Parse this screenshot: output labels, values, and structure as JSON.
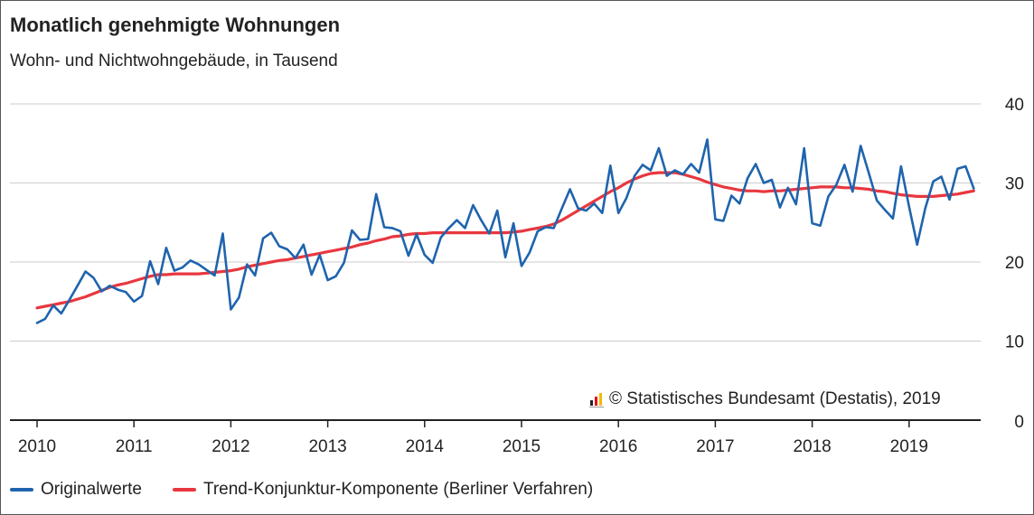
{
  "title": "Monatlich genehmigte Wohnungen",
  "subtitle": "Wohn- und Nichtwohngebäude, in Tausend",
  "copyright": "© Statistisches Bundesamt (Destatis), 2019",
  "colors": {
    "original": "#1f64ad",
    "trend": "#e8373f",
    "grid": "#cccccc",
    "axis": "#222222"
  },
  "chart_data": {
    "type": "line",
    "title": "Monatlich genehmigte Wohnungen",
    "subtitle": "Wohn- und Nichtwohngebäude, in Tausend",
    "xlabel": "",
    "ylabel": "",
    "x_start": "2010-01",
    "x_ticks": [
      "2010",
      "2011",
      "2012",
      "2013",
      "2014",
      "2015",
      "2016",
      "2017",
      "2018",
      "2019"
    ],
    "y_ticks": [
      0,
      10,
      20,
      30,
      40
    ],
    "ylim": [
      0,
      40
    ],
    "y_axis_side": "right",
    "grid": true,
    "legend_position": "bottom-left",
    "series": [
      {
        "name": "Originalwerte",
        "color": "#1f64ad",
        "values": [
          12.3,
          12.8,
          14.5,
          13.5,
          15.2,
          17.0,
          18.8,
          18.0,
          16.3,
          17.0,
          16.5,
          16.2,
          15.0,
          15.7,
          20.1,
          17.2,
          21.8,
          18.9,
          19.3,
          20.2,
          19.7,
          19.0,
          18.3,
          23.6,
          14.0,
          15.5,
          19.7,
          18.3,
          23.0,
          23.7,
          22.0,
          21.6,
          20.5,
          22.2,
          18.4,
          20.9,
          17.7,
          18.2,
          19.9,
          24.0,
          22.8,
          22.9,
          28.6,
          24.4,
          24.3,
          23.9,
          20.8,
          23.5,
          20.9,
          19.9,
          23.1,
          24.3,
          25.3,
          24.3,
          27.2,
          25.3,
          23.6,
          26.5,
          20.6,
          24.9,
          19.5,
          21.2,
          23.9,
          24.4,
          24.3,
          26.8,
          29.2,
          26.8,
          26.5,
          27.4,
          26.2,
          32.2,
          26.2,
          28.1,
          30.9,
          32.3,
          31.6,
          34.4,
          30.9,
          31.6,
          31.1,
          32.4,
          31.3,
          35.5,
          25.4,
          25.2,
          28.4,
          27.4,
          30.6,
          32.4,
          30.0,
          30.4,
          26.9,
          29.4,
          27.3,
          34.4,
          24.9,
          24.6,
          28.3,
          29.8,
          32.3,
          28.9,
          34.7,
          31.3,
          27.8,
          26.6,
          25.5,
          32.1,
          27.0,
          22.2,
          26.8,
          30.2,
          30.8,
          27.9,
          31.8,
          32.1,
          29.3
        ]
      },
      {
        "name": "Trend-Konjunktur-Komponente (Berliner Verfahren)",
        "color": "#e8373f",
        "values": [
          14.2,
          14.4,
          14.6,
          14.8,
          15.0,
          15.3,
          15.6,
          16.0,
          16.4,
          16.8,
          17.1,
          17.3,
          17.6,
          17.9,
          18.2,
          18.4,
          18.4,
          18.5,
          18.5,
          18.5,
          18.5,
          18.6,
          18.7,
          18.8,
          18.9,
          19.1,
          19.4,
          19.6,
          19.8,
          20.0,
          20.2,
          20.3,
          20.5,
          20.7,
          20.9,
          21.1,
          21.3,
          21.5,
          21.7,
          21.9,
          22.2,
          22.4,
          22.7,
          22.9,
          23.2,
          23.3,
          23.5,
          23.6,
          23.6,
          23.7,
          23.7,
          23.7,
          23.7,
          23.7,
          23.7,
          23.7,
          23.7,
          23.7,
          23.7,
          23.8,
          23.9,
          24.1,
          24.3,
          24.5,
          24.8,
          25.3,
          25.9,
          26.5,
          27.1,
          27.7,
          28.3,
          28.9,
          29.4,
          30.0,
          30.5,
          30.9,
          31.2,
          31.3,
          31.3,
          31.3,
          31.1,
          30.8,
          30.5,
          30.1,
          29.8,
          29.5,
          29.3,
          29.1,
          29.0,
          29.0,
          28.9,
          29.0,
          29.0,
          29.1,
          29.2,
          29.3,
          29.4,
          29.5,
          29.5,
          29.5,
          29.4,
          29.4,
          29.3,
          29.2,
          29.0,
          28.9,
          28.7,
          28.5,
          28.4,
          28.3,
          28.3,
          28.3,
          28.4,
          28.5,
          28.6,
          28.8,
          29.0
        ]
      }
    ]
  }
}
